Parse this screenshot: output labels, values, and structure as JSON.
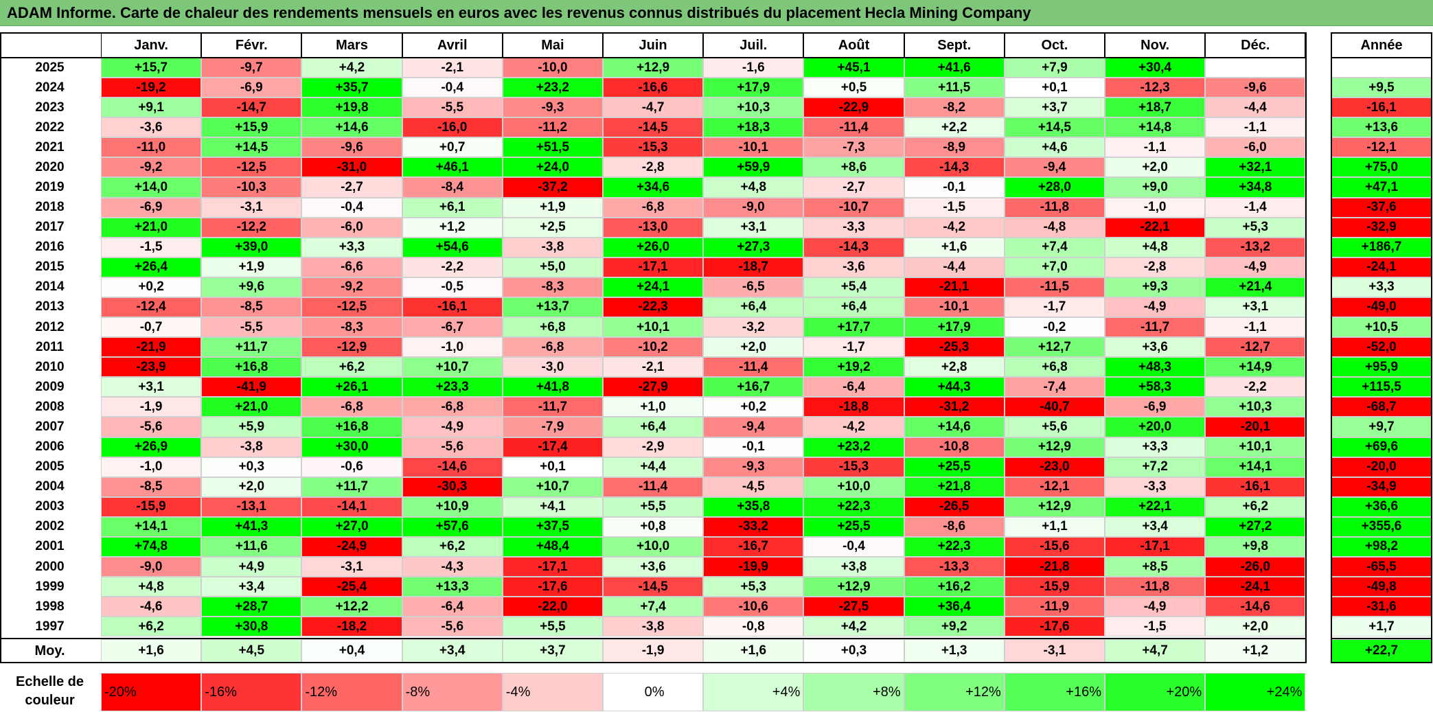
{
  "title": "ADAM Informe. Carte de chaleur des rendements mensuels en euros avec les revenus connus distribués du placement Hecla Mining Company",
  "chart_data": {
    "type": "heatmap",
    "columns": [
      "Janv.",
      "Févr.",
      "Mars",
      "Avril",
      "Mai",
      "Juin",
      "Juil.",
      "Août",
      "Sept.",
      "Oct.",
      "Nov.",
      "Déc."
    ],
    "annual_header": "Année",
    "rows": [
      {
        "year": "2025",
        "months": [
          "+15,7",
          "-9,7",
          "+4,2",
          "-2,1",
          "-10,0",
          "+12,9",
          "-1,6",
          "+45,1",
          "+41,6",
          "+7,9",
          "+30,4",
          ""
        ],
        "annual": ""
      },
      {
        "year": "2024",
        "months": [
          "-19,2",
          "-6,9",
          "+35,7",
          "-0,4",
          "+23,2",
          "-16,6",
          "+17,9",
          "+0,5",
          "+11,5",
          "+0,1",
          "-12,3",
          "-9,6"
        ],
        "annual": "+9,5"
      },
      {
        "year": "2023",
        "months": [
          "+9,1",
          "-14,7",
          "+19,8",
          "-5,5",
          "-9,3",
          "-4,7",
          "+10,3",
          "-22,9",
          "-8,2",
          "+3,7",
          "+18,7",
          "-4,4"
        ],
        "annual": "-16,1"
      },
      {
        "year": "2022",
        "months": [
          "-3,6",
          "+15,9",
          "+14,6",
          "-16,0",
          "-11,2",
          "-14,5",
          "+18,3",
          "-11,4",
          "+2,2",
          "+14,5",
          "+14,8",
          "-1,1"
        ],
        "annual": "+13,6"
      },
      {
        "year": "2021",
        "months": [
          "-11,0",
          "+14,5",
          "-9,6",
          "+0,7",
          "+51,5",
          "-15,3",
          "-10,1",
          "-7,3",
          "-8,9",
          "+4,6",
          "-1,1",
          "-6,0"
        ],
        "annual": "-12,1"
      },
      {
        "year": "2020",
        "months": [
          "-9,2",
          "-12,5",
          "-31,0",
          "+46,1",
          "+24,0",
          "-2,8",
          "+59,9",
          "+8,6",
          "-14,3",
          "-9,4",
          "+2,0",
          "+32,1"
        ],
        "annual": "+75,0"
      },
      {
        "year": "2019",
        "months": [
          "+14,0",
          "-10,3",
          "-2,7",
          "-8,4",
          "-37,2",
          "+34,6",
          "+4,8",
          "-2,7",
          "-0,1",
          "+28,0",
          "+9,0",
          "+34,8"
        ],
        "annual": "+47,1"
      },
      {
        "year": "2018",
        "months": [
          "-6,9",
          "-3,1",
          "-0,4",
          "+6,1",
          "+1,9",
          "-6,8",
          "-9,0",
          "-10,7",
          "-1,5",
          "-11,8",
          "-1,0",
          "-1,4"
        ],
        "annual": "-37,6"
      },
      {
        "year": "2017",
        "months": [
          "+21,0",
          "-12,2",
          "-6,0",
          "+1,2",
          "+2,5",
          "-13,0",
          "+3,1",
          "-3,3",
          "-4,2",
          "-4,8",
          "-22,1",
          "+5,3"
        ],
        "annual": "-32,9"
      },
      {
        "year": "2016",
        "months": [
          "-1,5",
          "+39,0",
          "+3,3",
          "+54,6",
          "-3,8",
          "+26,0",
          "+27,3",
          "-14,3",
          "+1,6",
          "+7,4",
          "+4,8",
          "-13,2"
        ],
        "annual": "+186,7"
      },
      {
        "year": "2015",
        "months": [
          "+26,4",
          "+1,9",
          "-6,6",
          "-2,2",
          "+5,0",
          "-17,1",
          "-18,7",
          "-3,6",
          "-4,4",
          "+7,0",
          "-2,8",
          "-4,9"
        ],
        "annual": "-24,1"
      },
      {
        "year": "2014",
        "months": [
          "+0,2",
          "+9,6",
          "-9,2",
          "-0,5",
          "-8,3",
          "+24,1",
          "-6,5",
          "+5,4",
          "-21,1",
          "-11,5",
          "+9,3",
          "+21,4"
        ],
        "annual": "+3,3"
      },
      {
        "year": "2013",
        "months": [
          "-12,4",
          "-8,5",
          "-12,5",
          "-16,1",
          "+13,7",
          "-22,3",
          "+6,4",
          "+6,4",
          "-10,1",
          "-1,7",
          "-4,9",
          "+3,1"
        ],
        "annual": "-49,0"
      },
      {
        "year": "2012",
        "months": [
          "-0,7",
          "-5,5",
          "-8,3",
          "-6,7",
          "+6,8",
          "+10,1",
          "-3,2",
          "+17,7",
          "+17,9",
          "-0,2",
          "-11,7",
          "-1,1"
        ],
        "annual": "+10,5"
      },
      {
        "year": "2011",
        "months": [
          "-21,9",
          "+11,7",
          "-12,9",
          "-1,0",
          "-6,8",
          "-10,2",
          "+2,0",
          "-1,7",
          "-25,3",
          "+12,7",
          "+3,6",
          "-12,7"
        ],
        "annual": "-52,0"
      },
      {
        "year": "2010",
        "months": [
          "-23,9",
          "+16,8",
          "+6,2",
          "+10,7",
          "-3,0",
          "-2,1",
          "-11,4",
          "+19,2",
          "+2,8",
          "+6,8",
          "+48,3",
          "+14,9"
        ],
        "annual": "+95,9"
      },
      {
        "year": "2009",
        "months": [
          "+3,1",
          "-41,9",
          "+26,1",
          "+23,3",
          "+41,8",
          "-27,9",
          "+16,7",
          "-6,4",
          "+44,3",
          "-7,4",
          "+58,3",
          "-2,2"
        ],
        "annual": "+115,5"
      },
      {
        "year": "2008",
        "months": [
          "-1,9",
          "+21,0",
          "-6,8",
          "-6,8",
          "-11,7",
          "+1,0",
          "+0,2",
          "-18,8",
          "-31,2",
          "-40,7",
          "-6,9",
          "+10,3"
        ],
        "annual": "-68,7"
      },
      {
        "year": "2007",
        "months": [
          "-5,6",
          "+5,9",
          "+16,8",
          "-4,9",
          "-7,9",
          "+6,4",
          "-9,4",
          "-4,2",
          "+14,6",
          "+5,6",
          "+20,0",
          "-20,1"
        ],
        "annual": "+9,7"
      },
      {
        "year": "2006",
        "months": [
          "+26,9",
          "-3,8",
          "+30,0",
          "-5,6",
          "-17,4",
          "-2,9",
          "-0,1",
          "+23,2",
          "-10,8",
          "+12,9",
          "+3,3",
          "+10,1"
        ],
        "annual": "+69,6"
      },
      {
        "year": "2005",
        "months": [
          "-1,0",
          "+0,3",
          "-0,6",
          "-14,6",
          "+0,1",
          "+4,4",
          "-9,3",
          "-15,3",
          "+25,5",
          "-23,0",
          "+7,2",
          "+14,1"
        ],
        "annual": "-20,0"
      },
      {
        "year": "2004",
        "months": [
          "-8,5",
          "+2,0",
          "+11,7",
          "-30,3",
          "+10,7",
          "-11,4",
          "-4,5",
          "+10,0",
          "+21,8",
          "-12,1",
          "-3,3",
          "-16,1"
        ],
        "annual": "-34,9"
      },
      {
        "year": "2003",
        "months": [
          "-15,9",
          "-13,1",
          "-14,1",
          "+10,9",
          "+4,1",
          "+5,5",
          "+35,8",
          "+22,3",
          "-26,5",
          "+12,9",
          "+22,1",
          "+6,2"
        ],
        "annual": "+36,6"
      },
      {
        "year": "2002",
        "months": [
          "+14,1",
          "+41,3",
          "+27,0",
          "+57,6",
          "+37,5",
          "+0,8",
          "-33,2",
          "+25,5",
          "-8,6",
          "+1,1",
          "+3,4",
          "+27,2"
        ],
        "annual": "+355,6"
      },
      {
        "year": "2001",
        "months": [
          "+74,8",
          "+11,6",
          "-24,9",
          "+6,2",
          "+48,4",
          "+10,0",
          "-16,7",
          "-0,4",
          "+22,3",
          "-15,6",
          "-17,1",
          "+9,8"
        ],
        "annual": "+98,2"
      },
      {
        "year": "2000",
        "months": [
          "-9,0",
          "+4,9",
          "-3,1",
          "-4,3",
          "-17,1",
          "+3,6",
          "-19,9",
          "+3,8",
          "-13,3",
          "-21,8",
          "+8,5",
          "-26,0"
        ],
        "annual": "-65,5"
      },
      {
        "year": "1999",
        "months": [
          "+4,8",
          "+3,4",
          "-25,4",
          "+13,3",
          "-17,6",
          "-14,5",
          "+5,3",
          "+12,9",
          "+16,2",
          "-15,9",
          "-11,8",
          "-24,1"
        ],
        "annual": "-49,8"
      },
      {
        "year": "1998",
        "months": [
          "-4,6",
          "+28,7",
          "+12,2",
          "-6,4",
          "-22,0",
          "+7,4",
          "-10,6",
          "-27,5",
          "+36,4",
          "-11,9",
          "-4,9",
          "-14,6"
        ],
        "annual": "-31,6"
      },
      {
        "year": "1997",
        "months": [
          "+6,2",
          "+30,8",
          "-18,2",
          "-5,6",
          "+5,5",
          "-3,8",
          "-0,8",
          "+4,2",
          "+9,2",
          "-17,6",
          "-1,5",
          "+2,0"
        ],
        "annual": "+1,7"
      }
    ],
    "average": {
      "label": "Moy.",
      "months": [
        "+1,6",
        "+4,5",
        "+0,4",
        "+3,4",
        "+3,7",
        "-1,9",
        "+1,6",
        "+0,3",
        "+1,3",
        "-3,1",
        "+4,7",
        "+1,2"
      ],
      "annual": "+22,7"
    },
    "scale": {
      "label_line1": "Echelle de",
      "label_line2": "couleur",
      "steps": [
        "-20%",
        "-16%",
        "-12%",
        "-8%",
        "-4%",
        "0%",
        "+4%",
        "+8%",
        "+12%",
        "+16%",
        "+20%",
        "+24%"
      ],
      "min_color": "#ff0000",
      "mid_color": "#ffffff",
      "max_color": "#00ff00"
    }
  }
}
